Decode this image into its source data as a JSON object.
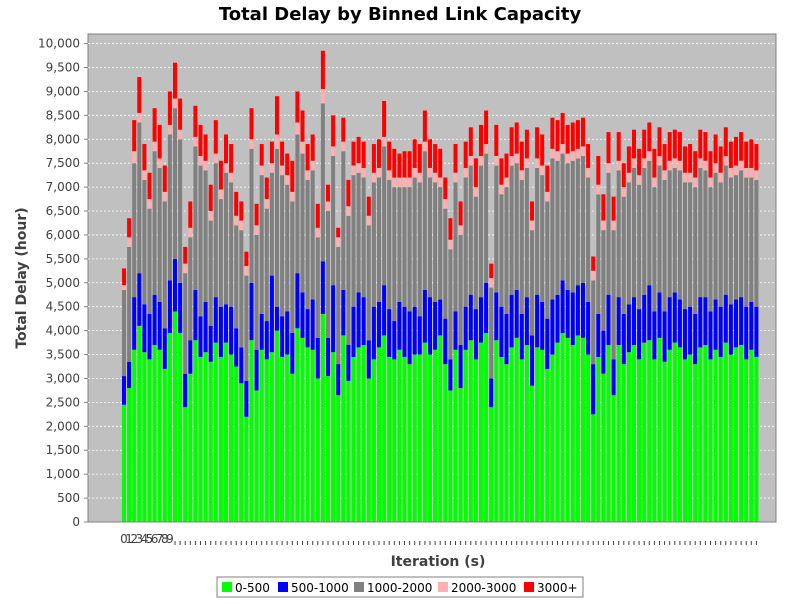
{
  "chart_data": {
    "type": "bar",
    "stacked": true,
    "title": "Total Delay by Binned Link Capacity",
    "xlabel": "Iteration (s)",
    "ylabel": "Total Delay (hour)",
    "ylim": [
      0,
      10200
    ],
    "yticks": [
      0,
      500,
      1000,
      1500,
      2000,
      2500,
      3000,
      3500,
      4000,
      4500,
      5000,
      5500,
      6000,
      6500,
      7000,
      7500,
      8000,
      8500,
      9000,
      9500,
      10000
    ],
    "ytick_labels": [
      "0",
      "500",
      "1,000",
      "1,500",
      "2,000",
      "2,500",
      "3,000",
      "3,500",
      "4,000",
      "4,500",
      "5,000",
      "5,500",
      "6,000",
      "6,500",
      "7,000",
      "7,500",
      "8,000",
      "8,500",
      "9,000",
      "9,500",
      "10,000"
    ],
    "grid": true,
    "background": "#c0c0c0",
    "legend_position": "bottom",
    "x_tick_labels": [
      "0",
      "1",
      "2",
      "3",
      "4",
      "5",
      "6",
      "7",
      "8",
      "9"
    ],
    "categories_count": 125,
    "series": [
      {
        "name": "0-500",
        "color": "#00ff00",
        "values": [
          2450,
          2800,
          3600,
          4100,
          3550,
          3400,
          3700,
          3600,
          3200,
          3950,
          4400,
          3950,
          2400,
          3100,
          3800,
          3450,
          3550,
          3350,
          3750,
          3450,
          3750,
          3500,
          3250,
          2900,
          2200,
          3800,
          2750,
          3600,
          3400,
          3550,
          4000,
          3450,
          3500,
          3100,
          4050,
          3850,
          3650,
          3600,
          3000,
          4350,
          3050,
          3550,
          2650,
          3900,
          2950,
          3450,
          3650,
          3700,
          3000,
          3400,
          3650,
          3900,
          3450,
          3400,
          3600,
          3450,
          3300,
          3500,
          3500,
          3750,
          3500,
          3600,
          3900,
          3300,
          2750,
          3600,
          2800,
          3600,
          3800,
          3400,
          3750,
          3950,
          2400,
          3800,
          3450,
          3300,
          3650,
          3850,
          3400,
          3700,
          2850,
          3650,
          3600,
          3200,
          3500,
          3750,
          3950,
          3850,
          3700,
          3900,
          3850,
          3500,
          2250,
          3450,
          3100,
          3700,
          2650,
          3700,
          3300,
          3550,
          3700,
          3400,
          3750,
          3800,
          3400,
          3850,
          3350,
          3600,
          3750,
          3650,
          3400,
          3500,
          3300,
          3650,
          3700,
          3400,
          3600,
          3450,
          3750,
          3500,
          3650,
          3700,
          3400,
          3600,
          3450
        ]
      },
      {
        "name": "500-1000",
        "color": "#0000ff",
        "values": [
          600,
          550,
          1100,
          1100,
          1000,
          950,
          1050,
          1000,
          850,
          1100,
          1100,
          1050,
          700,
          700,
          1050,
          850,
          1050,
          750,
          950,
          1050,
          800,
          1000,
          800,
          750,
          750,
          1200,
          850,
          750,
          800,
          1600,
          500,
          850,
          900,
          850,
          1150,
          950,
          800,
          1050,
          850,
          1100,
          800,
          1400,
          650,
          950,
          750,
          1050,
          1150,
          1000,
          800,
          1100,
          950,
          1050,
          1000,
          800,
          1000,
          1050,
          1100,
          1000,
          800,
          1100,
          1200,
          1000,
          750,
          950,
          650,
          800,
          900,
          900,
          950,
          1050,
          950,
          1050,
          600,
          1000,
          1050,
          1050,
          1100,
          1000,
          950,
          1000,
          1050,
          1100,
          1000,
          1050,
          1150,
          1000,
          1100,
          1000,
          1100,
          1050,
          1150,
          1100,
          1050,
          900,
          900,
          1050,
          750,
          1000,
          1050,
          1000,
          1000,
          1050,
          1000,
          1150,
          1000,
          950,
          1050,
          1100,
          1050,
          1000,
          1050,
          1000,
          1050,
          1050,
          1000,
          1000,
          1050,
          1050,
          1000,
          1050,
          1000,
          1000,
          1100,
          1000,
          1050
        ]
      },
      {
        "name": "1000-2000",
        "color": "#808080",
        "values": [
          1800,
          2400,
          2800,
          3150,
          2600,
          2200,
          3000,
          2800,
          2650,
          3050,
          3150,
          3000,
          2100,
          2150,
          3000,
          3150,
          2750,
          2200,
          2800,
          2250,
          2750,
          2600,
          2150,
          2450,
          2200,
          2800,
          2400,
          2900,
          2350,
          2150,
          3300,
          2950,
          2650,
          2750,
          2900,
          2900,
          2700,
          2700,
          2100,
          3300,
          2650,
          2700,
          2450,
          2900,
          2700,
          2750,
          2500,
          2500,
          2400,
          2600,
          2600,
          2900,
          2700,
          2800,
          2400,
          2500,
          2600,
          2700,
          2800,
          2900,
          2500,
          2500,
          2350,
          2300,
          2300,
          2700,
          2300,
          2700,
          2700,
          2350,
          2750,
          2700,
          1900,
          2650,
          2350,
          2650,
          2700,
          2650,
          2800,
          2700,
          2200,
          2650,
          2650,
          2450,
          2950,
          2800,
          2650,
          2650,
          2750,
          2650,
          2650,
          2600,
          1750,
          2500,
          2100,
          2550,
          2700,
          2650,
          2450,
          2550,
          2700,
          2600,
          2650,
          2600,
          2600,
          2650,
          2750,
          2650,
          2600,
          2700,
          2650,
          2600,
          2650,
          2700,
          2650,
          2600,
          2650,
          2600,
          2700,
          2650,
          2600,
          2650,
          2700,
          2600,
          2650
        ]
      },
      {
        "name": "2000-3000",
        "color": "#ffafaf",
        "values": [
          100,
          200,
          250,
          200,
          200,
          200,
          200,
          200,
          200,
          200,
          200,
          200,
          200,
          200,
          200,
          200,
          200,
          200,
          200,
          200,
          200,
          200,
          200,
          200,
          200,
          200,
          200,
          200,
          200,
          200,
          300,
          200,
          200,
          200,
          250,
          250,
          200,
          200,
          200,
          300,
          200,
          200,
          200,
          200,
          200,
          200,
          200,
          200,
          200,
          200,
          200,
          200,
          200,
          200,
          200,
          200,
          200,
          200,
          200,
          200,
          200,
          200,
          200,
          200,
          200,
          200,
          200,
          200,
          200,
          200,
          200,
          200,
          200,
          200,
          200,
          200,
          200,
          200,
          200,
          200,
          200,
          200,
          200,
          200,
          200,
          200,
          200,
          200,
          200,
          200,
          200,
          200,
          200,
          200,
          200,
          200,
          200,
          200,
          200,
          200,
          200,
          200,
          200,
          200,
          200,
          200,
          200,
          200,
          200,
          200,
          200,
          200,
          200,
          200,
          200,
          200,
          200,
          200,
          200,
          200,
          200,
          200,
          200,
          200,
          200
        ]
      },
      {
        "name": "3000+",
        "color": "#ff0000",
        "values": [
          350,
          400,
          650,
          750,
          550,
          550,
          700,
          700,
          550,
          700,
          750,
          650,
          350,
          550,
          650,
          650,
          550,
          550,
          700,
          600,
          600,
          600,
          500,
          400,
          300,
          650,
          450,
          450,
          450,
          450,
          800,
          500,
          450,
          650,
          650,
          650,
          550,
          550,
          500,
          800,
          350,
          650,
          200,
          500,
          550,
          500,
          550,
          550,
          400,
          600,
          600,
          750,
          600,
          600,
          500,
          550,
          550,
          600,
          600,
          650,
          600,
          600,
          600,
          450,
          450,
          600,
          500,
          550,
          600,
          600,
          650,
          700,
          300,
          650,
          550,
          500,
          600,
          650,
          600,
          600,
          400,
          650,
          650,
          550,
          650,
          650,
          650,
          600,
          600,
          600,
          600,
          500,
          300,
          600,
          550,
          650,
          500,
          600,
          500,
          550,
          600,
          550,
          600,
          600,
          600,
          600,
          550,
          600,
          600,
          600,
          550,
          600,
          550,
          600,
          600,
          550,
          600,
          550,
          600,
          550,
          600,
          600,
          550,
          600,
          550
        ]
      }
    ]
  }
}
